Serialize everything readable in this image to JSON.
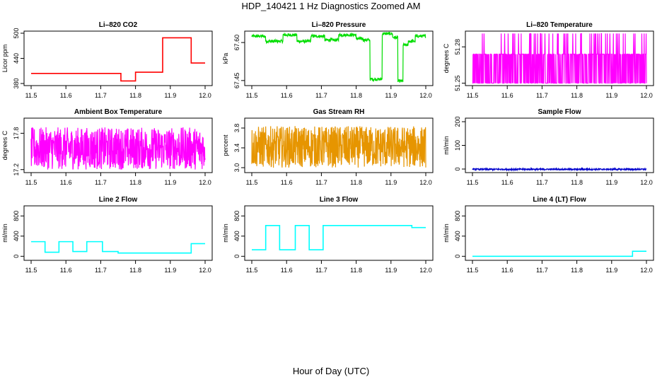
{
  "page": {
    "title": "HDP_140421  1 Hz Diagnostics Zoomed AM",
    "xlabel": "Hour of Day (UTC)"
  },
  "chart_data": [
    {
      "type": "line",
      "title": "Li–820 CO2",
      "ylabel": "Licor ppm",
      "color": "#ff0000",
      "xlim": [
        11.5,
        12.0
      ],
      "ylim": [
        375,
        505
      ],
      "xticks": [
        "11.5",
        "11.6",
        "11.7",
        "11.8",
        "11.9",
        "12.0"
      ],
      "yticks": [
        380,
        440,
        500
      ],
      "ytick_labels": [
        "380",
        "440",
        "500"
      ],
      "noisy": false,
      "series": [
        {
          "x": [
            11.5,
            11.758,
            11.758,
            11.8,
            11.8,
            11.878,
            11.878,
            11.96,
            11.96,
            12.0
          ],
          "y": [
            404,
            404,
            386,
            386,
            407,
            407,
            489,
            489,
            429,
            429
          ]
        }
      ]
    },
    {
      "type": "line",
      "title": "Li–820 Pressure",
      "ylabel": "kPa",
      "color": "#00dd00",
      "xlim": [
        11.5,
        12.0
      ],
      "ylim": [
        67.43,
        67.645
      ],
      "xticks": [
        "11.5",
        "11.6",
        "11.7",
        "11.8",
        "11.9",
        "12.0"
      ],
      "yticks": [
        67.45,
        67.6
      ],
      "ytick_labels": [
        "67.45",
        "67.60"
      ],
      "right_yticks": [
        "67.60"
      ],
      "noisy": true,
      "noise": 0.006,
      "series": [
        {
          "x": [
            11.5,
            11.54,
            11.54,
            11.59,
            11.59,
            11.63,
            11.63,
            11.67,
            11.67,
            11.71,
            11.71,
            11.75,
            11.75,
            11.8,
            11.8,
            11.82,
            11.82,
            11.84,
            11.84,
            11.875,
            11.875,
            11.905,
            11.905,
            11.92,
            11.92,
            11.935,
            11.935,
            11.95,
            11.95,
            11.97,
            11.97,
            12.0
          ],
          "y": [
            67.625,
            67.625,
            67.605,
            67.605,
            67.63,
            67.63,
            67.605,
            67.605,
            67.625,
            67.625,
            67.61,
            67.61,
            67.63,
            67.63,
            67.615,
            67.615,
            67.61,
            67.61,
            67.455,
            67.455,
            67.635,
            67.635,
            67.62,
            67.62,
            67.448,
            67.448,
            67.59,
            67.59,
            67.605,
            67.605,
            67.625,
            67.625
          ]
        }
      ]
    },
    {
      "type": "line",
      "title": "Li–820 Temperature",
      "ylabel": "degrees C",
      "color": "#ff00ff",
      "xlim": [
        11.5,
        12.0
      ],
      "ylim": [
        51.248,
        51.293
      ],
      "xticks": [
        "11.5",
        "11.6",
        "11.7",
        "11.8",
        "11.9",
        "12.0"
      ],
      "yticks": [
        51.25,
        51.28
      ],
      "ytick_labels": [
        "51.25",
        "51.28"
      ],
      "noisy": true,
      "pattern": "flicker",
      "flicker_levels": [
        51.25,
        51.274,
        51.291
      ],
      "series": [
        {
          "x": [
            11.5,
            12.0
          ],
          "y": [
            51.274,
            51.274
          ]
        }
      ]
    },
    {
      "type": "line",
      "title": "Ambient Box Temperature",
      "ylabel": "degrees C",
      "color": "#ff00ff",
      "xlim": [
        11.5,
        12.0
      ],
      "ylim": [
        17.15,
        18.05
      ],
      "xticks": [
        "11.5",
        "11.6",
        "11.7",
        "11.8",
        "11.9",
        "12.0"
      ],
      "yticks": [
        17.2,
        17.8
      ],
      "ytick_labels": [
        "17.2",
        "17.8"
      ],
      "noisy": true,
      "noise": 0.35,
      "series": [
        {
          "x": [
            11.5,
            12.0
          ],
          "y": [
            17.55,
            17.55
          ]
        }
      ]
    },
    {
      "type": "line",
      "title": "Gas Stream RH",
      "ylabel": "percent",
      "color": "#e69500",
      "xlim": [
        11.5,
        12.0
      ],
      "ylim": [
        2.9,
        4.0
      ],
      "xticks": [
        "11.5",
        "11.6",
        "11.7",
        "11.8",
        "11.9",
        "12.0"
      ],
      "yticks": [
        3.0,
        3.4,
        3.8
      ],
      "ytick_labels": [
        "3.0",
        "3.4",
        "3.8"
      ],
      "noisy": true,
      "noise": 0.42,
      "series": [
        {
          "x": [
            11.5,
            12.0
          ],
          "y": [
            3.42,
            3.42
          ]
        }
      ]
    },
    {
      "type": "line",
      "title": "Sample Flow",
      "ylabel": "ml/min",
      "color": "#0000cc",
      "xlim": [
        11.5,
        12.0
      ],
      "ylim": [
        -15,
        215
      ],
      "xticks": [
        "11.5",
        "11.6",
        "11.7",
        "11.8",
        "11.9",
        "12.0"
      ],
      "yticks": [
        0,
        100,
        200
      ],
      "ytick_labels": [
        "0",
        "100",
        "200"
      ],
      "noisy": true,
      "noise": 3,
      "series": [
        {
          "x": [
            11.5,
            12.0
          ],
          "y": [
            -1,
            -1
          ]
        }
      ]
    },
    {
      "type": "line",
      "title": "Line 2 Flow",
      "ylabel": "ml/min",
      "color": "#00ffff",
      "xlim": [
        11.5,
        12.0
      ],
      "ylim": [
        -80,
        1000
      ],
      "xticks": [
        "11.5",
        "11.6",
        "11.7",
        "11.8",
        "11.9",
        "12.0"
      ],
      "yticks": [
        0,
        400,
        800
      ],
      "ytick_labels": [
        "0",
        "400",
        "800"
      ],
      "noisy": false,
      "series": [
        {
          "x": [
            11.5,
            11.54,
            11.54,
            11.58,
            11.58,
            11.62,
            11.62,
            11.66,
            11.66,
            11.705,
            11.705,
            11.75,
            11.75,
            11.96,
            11.96,
            12.0
          ],
          "y": [
            290,
            290,
            80,
            80,
            290,
            290,
            95,
            95,
            290,
            290,
            95,
            95,
            65,
            65,
            250,
            250
          ]
        }
      ]
    },
    {
      "type": "line",
      "title": "Line 3 Flow",
      "ylabel": "ml/min",
      "color": "#00ffff",
      "xlim": [
        11.5,
        12.0
      ],
      "ylim": [
        -80,
        1000
      ],
      "xticks": [
        "11.5",
        "11.6",
        "11.7",
        "11.8",
        "11.9",
        "12.0"
      ],
      "yticks": [
        0,
        400,
        800
      ],
      "ytick_labels": [
        "0",
        "400",
        "800"
      ],
      "noisy": false,
      "series": [
        {
          "x": [
            11.5,
            11.54,
            11.54,
            11.58,
            11.58,
            11.625,
            11.625,
            11.665,
            11.665,
            11.705,
            11.705,
            11.96,
            11.96,
            12.0
          ],
          "y": [
            130,
            130,
            610,
            610,
            130,
            130,
            610,
            610,
            130,
            130,
            610,
            610,
            570,
            570
          ]
        }
      ]
    },
    {
      "type": "line",
      "title": "Line 4 (LT) Flow",
      "ylabel": "ml/min",
      "color": "#00ffff",
      "xlim": [
        11.5,
        12.0
      ],
      "ylim": [
        -80,
        1000
      ],
      "xticks": [
        "11.5",
        "11.6",
        "11.7",
        "11.8",
        "11.9",
        "12.0"
      ],
      "yticks": [
        0,
        400,
        800
      ],
      "ytick_labels": [
        "0",
        "400",
        "800"
      ],
      "noisy": false,
      "series": [
        {
          "x": [
            11.5,
            11.96,
            11.96,
            12.0
          ],
          "y": [
            0,
            0,
            100,
            100
          ]
        }
      ]
    }
  ]
}
